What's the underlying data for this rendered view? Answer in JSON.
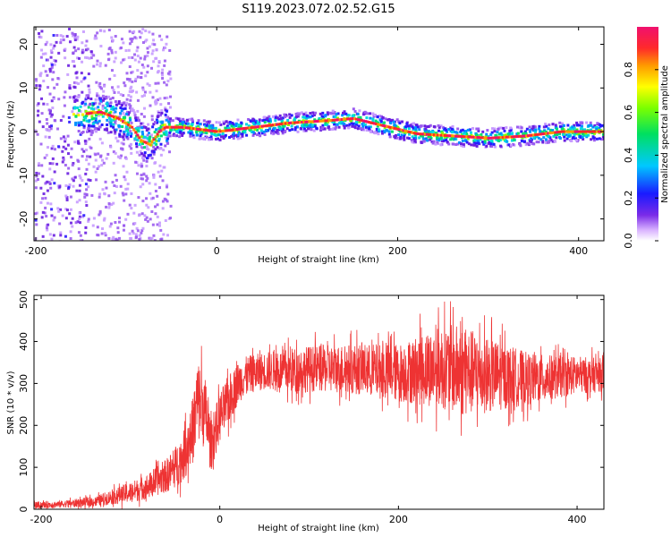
{
  "title": "S119.2023.072.02.52.G15",
  "chart_data": [
    {
      "type": "heatmap",
      "title": "S119.2023.072.02.52.G15",
      "xlabel": "Height of straight line (km)",
      "ylabel": "Frequency (Hz)",
      "xlim": [
        -202,
        428
      ],
      "ylim": [
        -25,
        24
      ],
      "x_ticks": [
        -200,
        0,
        200,
        400
      ],
      "y_ticks": [
        -20,
        -10,
        0,
        10,
        20
      ],
      "colorbar": {
        "label": "Normalized spectral amplitude",
        "range": [
          0,
          1
        ],
        "ticks": [
          0.0,
          0.2,
          0.4,
          0.6,
          0.8
        ],
        "colormap": "rainbow-violet-to-pink"
      },
      "ridge": {
        "x": [
          -150,
          -130,
          -110,
          -95,
          -85,
          -75,
          -65,
          -58,
          -40,
          0,
          40,
          80,
          120,
          150,
          180,
          220,
          260,
          300,
          340,
          380,
          425
        ],
        "y": [
          4,
          4.5,
          3,
          1,
          -2,
          -3,
          0,
          1,
          1,
          0,
          1,
          2,
          2.5,
          3,
          1.5,
          -0.5,
          -1,
          -1.5,
          -1,
          0,
          0
        ]
      },
      "grid": false,
      "legend": "none"
    },
    {
      "type": "line",
      "xlabel": "Height of straight line (km)",
      "ylabel": "SNR (10 * v/v)",
      "xlim": [
        -208,
        430
      ],
      "ylim": [
        0,
        510
      ],
      "x_ticks": [
        -200,
        0,
        200,
        400
      ],
      "y_ticks": [
        0,
        100,
        200,
        300,
        400,
        500
      ],
      "series": [
        {
          "color": "#ee3333",
          "x": [
            -208,
            -180,
            -160,
            -140,
            -120,
            -100,
            -80,
            -60,
            -50,
            -40,
            -30,
            -25,
            -20,
            -15,
            -10,
            0,
            10,
            20,
            30,
            50,
            80,
            100,
            150,
            200,
            250,
            270,
            300,
            350,
            400,
            430
          ],
          "y": [
            10,
            12,
            15,
            18,
            30,
            40,
            55,
            80,
            100,
            130,
            190,
            260,
            250,
            220,
            150,
            220,
            260,
            300,
            320,
            330,
            330,
            335,
            335,
            325,
            340,
            330,
            320,
            310,
            320,
            320
          ],
          "spread": [
            8,
            8,
            10,
            12,
            18,
            25,
            30,
            40,
            50,
            60,
            80,
            100,
            100,
            80,
            60,
            60,
            60,
            50,
            45,
            45,
            55,
            55,
            60,
            70,
            100,
            110,
            90,
            60,
            45,
            40
          ]
        }
      ],
      "grid": false,
      "legend": "none"
    }
  ]
}
